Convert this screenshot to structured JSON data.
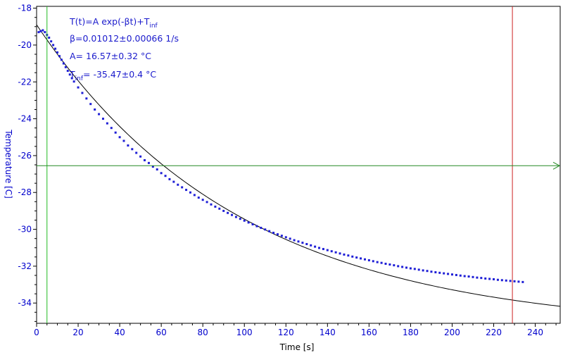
{
  "chart_data": {
    "type": "scatter",
    "xlabel": "Time [s]",
    "ylabel": "Temperature [C]",
    "xlim": [
      0,
      252
    ],
    "ylim": [
      -35.1,
      -17.9
    ],
    "x_ticks": [
      0,
      20,
      40,
      60,
      80,
      100,
      120,
      140,
      160,
      180,
      200,
      220,
      240
    ],
    "y_ticks": [
      -18,
      -20,
      -22,
      -24,
      -26,
      -28,
      -30,
      -32,
      -34
    ],
    "grid": false,
    "annotations": {
      "formula_main": "T(t)=A exp(-βt)+T",
      "formula_sub": "inf",
      "beta": "β=0.01012±0.00066 1/s",
      "amplitude": "A= 16.57±0.32 °C",
      "tinf_prefix": "T",
      "tinf_sub": "inf",
      "tinf_value": "= -35.47±0.4 °C"
    },
    "fit": {
      "A": 16.57,
      "beta": 0.01012,
      "T_inf": -35.47,
      "x_range": [
        0,
        252
      ]
    },
    "series": [
      {
        "values": [
          [
            1,
            -19.3
          ],
          [
            2,
            -19.25
          ],
          [
            3,
            -19.2
          ],
          [
            4,
            -19.3
          ],
          [
            5,
            -19.45
          ],
          [
            6,
            -19.6
          ],
          [
            7,
            -19.8
          ],
          [
            8,
            -20.0
          ],
          [
            9,
            -20.2
          ],
          [
            10,
            -20.4
          ],
          [
            11,
            -20.6
          ],
          [
            12,
            -20.8
          ],
          [
            13,
            -21.0
          ],
          [
            14,
            -21.2
          ],
          [
            15,
            -21.4
          ],
          [
            16,
            -21.6
          ],
          [
            17,
            -21.8
          ],
          [
            18,
            -21.98
          ],
          [
            20,
            -22.3
          ],
          [
            22,
            -22.6
          ],
          [
            24,
            -22.9
          ],
          [
            26,
            -23.2
          ],
          [
            28,
            -23.5
          ],
          [
            30,
            -23.75
          ],
          [
            32,
            -24.0
          ],
          [
            34,
            -24.25
          ],
          [
            36,
            -24.5
          ],
          [
            38,
            -24.75
          ],
          [
            40,
            -25.0
          ],
          [
            42,
            -25.2
          ],
          [
            44,
            -25.45
          ],
          [
            46,
            -25.65
          ],
          [
            48,
            -25.85
          ],
          [
            50,
            -26.05
          ],
          [
            52,
            -26.25
          ],
          [
            54,
            -26.4
          ],
          [
            56,
            -26.6
          ],
          [
            58,
            -26.75
          ],
          [
            60,
            -26.95
          ],
          [
            62,
            -27.1
          ],
          [
            64,
            -27.28
          ],
          [
            66,
            -27.42
          ],
          [
            68,
            -27.58
          ],
          [
            70,
            -27.72
          ],
          [
            72,
            -27.86
          ],
          [
            74,
            -28.0
          ],
          [
            76,
            -28.14
          ],
          [
            78,
            -28.28
          ],
          [
            80,
            -28.4
          ],
          [
            82,
            -28.52
          ],
          [
            84,
            -28.65
          ],
          [
            86,
            -28.77
          ],
          [
            88,
            -28.88
          ],
          [
            90,
            -29.0
          ],
          [
            92,
            -29.11
          ],
          [
            94,
            -29.22
          ],
          [
            96,
            -29.33
          ],
          [
            98,
            -29.43
          ],
          [
            100,
            -29.53
          ],
          [
            102,
            -29.63
          ],
          [
            104,
            -29.73
          ],
          [
            106,
            -29.83
          ],
          [
            108,
            -29.92
          ],
          [
            110,
            -30.01
          ],
          [
            112,
            -30.1
          ],
          [
            114,
            -30.19
          ],
          [
            116,
            -30.27
          ],
          [
            118,
            -30.35
          ],
          [
            120,
            -30.43
          ],
          [
            122,
            -30.51
          ],
          [
            124,
            -30.59
          ],
          [
            126,
            -30.66
          ],
          [
            128,
            -30.73
          ],
          [
            130,
            -30.8
          ],
          [
            132,
            -30.87
          ],
          [
            134,
            -30.94
          ],
          [
            136,
            -31.01
          ],
          [
            138,
            -31.07
          ],
          [
            140,
            -31.13
          ],
          [
            142,
            -31.19
          ],
          [
            144,
            -31.25
          ],
          [
            146,
            -31.31
          ],
          [
            148,
            -31.37
          ],
          [
            150,
            -31.42
          ],
          [
            152,
            -31.48
          ],
          [
            154,
            -31.53
          ],
          [
            156,
            -31.58
          ],
          [
            158,
            -31.63
          ],
          [
            160,
            -31.68
          ],
          [
            162,
            -31.73
          ],
          [
            164,
            -31.78
          ],
          [
            166,
            -31.82
          ],
          [
            168,
            -31.87
          ],
          [
            170,
            -31.91
          ],
          [
            172,
            -31.95
          ],
          [
            174,
            -32.0
          ],
          [
            176,
            -32.04
          ],
          [
            178,
            -32.08
          ],
          [
            180,
            -32.12
          ],
          [
            182,
            -32.15
          ],
          [
            184,
            -32.19
          ],
          [
            186,
            -32.23
          ],
          [
            188,
            -32.26
          ],
          [
            190,
            -32.3
          ],
          [
            192,
            -32.33
          ],
          [
            194,
            -32.36
          ],
          [
            196,
            -32.39
          ],
          [
            198,
            -32.42
          ],
          [
            200,
            -32.45
          ],
          [
            202,
            -32.48
          ],
          [
            204,
            -32.51
          ],
          [
            206,
            -32.54
          ],
          [
            208,
            -32.56
          ],
          [
            210,
            -32.59
          ],
          [
            212,
            -32.62
          ],
          [
            214,
            -32.64
          ],
          [
            216,
            -32.67
          ],
          [
            218,
            -32.69
          ],
          [
            220,
            -32.71
          ],
          [
            222,
            -32.74
          ],
          [
            224,
            -32.76
          ],
          [
            226,
            -32.78
          ],
          [
            228,
            -32.8
          ],
          [
            230,
            -32.82
          ],
          [
            232,
            -32.84
          ],
          [
            234,
            -32.86
          ]
        ]
      }
    ],
    "cursors": {
      "vertical_green_x": 5,
      "vertical_red_x": 229,
      "horizontal_green_y": -26.55
    },
    "colors": {
      "points": "#1f1fd6",
      "fit_line": "#000000",
      "axis_text": "#0000cc",
      "cursor_green": "#22bb22",
      "cursor_h_green": "#228822",
      "cursor_red": "#cc2222"
    }
  }
}
